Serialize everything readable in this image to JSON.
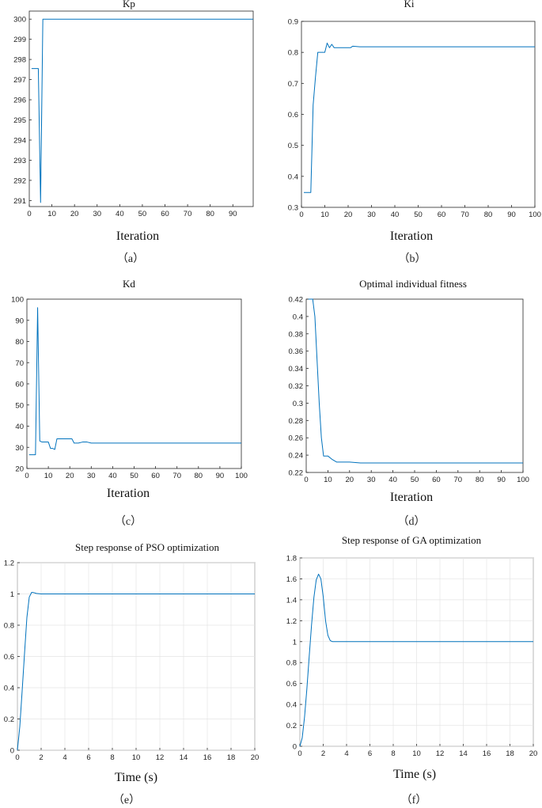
{
  "line_color": "#0072BD",
  "chart_data": [
    {
      "id": "a",
      "type": "line",
      "title": "Kp",
      "xlabel": "Iteration",
      "caption": "（a）",
      "xlim": [
        0,
        99
      ],
      "ylim": [
        290.7,
        300.4
      ],
      "xticks": [
        0,
        10,
        20,
        30,
        40,
        50,
        60,
        70,
        80,
        90
      ],
      "yticks": [
        291,
        292,
        293,
        294,
        295,
        296,
        297,
        298,
        299,
        300
      ],
      "grid": false,
      "series": [
        {
          "x": [
            1,
            4,
            5,
            6,
            99
          ],
          "y": [
            297.55,
            297.55,
            290.9,
            300.0,
            300.0
          ]
        }
      ]
    },
    {
      "id": "b",
      "type": "line",
      "title": "Ki",
      "xlabel": "Iteration",
      "caption": "（b）",
      "xlim": [
        0,
        100
      ],
      "ylim": [
        0.3,
        0.9
      ],
      "xticks": [
        0,
        10,
        20,
        30,
        40,
        50,
        60,
        70,
        80,
        90,
        100
      ],
      "yticks": [
        0.3,
        0.4,
        0.5,
        0.6,
        0.7,
        0.8,
        0.9
      ],
      "grid": false,
      "series": [
        {
          "x": [
            1,
            4,
            5,
            6,
            7,
            8,
            10,
            11,
            12,
            13,
            14,
            16,
            18,
            21,
            22,
            25,
            100
          ],
          "y": [
            0.348,
            0.348,
            0.63,
            0.72,
            0.8,
            0.8,
            0.8,
            0.83,
            0.815,
            0.826,
            0.815,
            0.815,
            0.815,
            0.815,
            0.82,
            0.818,
            0.818
          ]
        }
      ]
    },
    {
      "id": "c",
      "type": "line",
      "title": "Kd",
      "xlabel": "Iteration",
      "caption": "（c）",
      "xlim": [
        0,
        100
      ],
      "ylim": [
        20,
        100
      ],
      "xticks": [
        0,
        10,
        20,
        30,
        40,
        50,
        60,
        70,
        80,
        90,
        100
      ],
      "yticks": [
        20,
        30,
        40,
        50,
        60,
        70,
        80,
        90,
        100
      ],
      "grid": false,
      "series": [
        {
          "x": [
            1,
            4,
            5,
            6,
            7,
            9,
            10,
            11,
            12,
            13,
            14,
            20,
            21,
            22,
            24,
            26,
            28,
            30,
            100
          ],
          "y": [
            26.5,
            26.5,
            96,
            33,
            32.5,
            32.5,
            32.5,
            29.5,
            29.5,
            29,
            34,
            34,
            34,
            32,
            32,
            32.5,
            32.5,
            32,
            32
          ]
        }
      ]
    },
    {
      "id": "d",
      "type": "line",
      "title": "Optimal individual fitness",
      "xlabel": "Iteration",
      "caption": "（d）",
      "xlim": [
        0,
        100
      ],
      "ylim": [
        0.22,
        0.42
      ],
      "xticks": [
        0,
        10,
        20,
        30,
        40,
        50,
        60,
        70,
        80,
        90,
        100
      ],
      "yticks": [
        0.22,
        0.24,
        0.26,
        0.28,
        0.3,
        0.32,
        0.34,
        0.36,
        0.38,
        0.4,
        0.42
      ],
      "grid": false,
      "series": [
        {
          "x": [
            1,
            3,
            4,
            5,
            6,
            7,
            8,
            10,
            12,
            14,
            16,
            20,
            25,
            30,
            100
          ],
          "y": [
            0.42,
            0.42,
            0.4,
            0.35,
            0.3,
            0.26,
            0.239,
            0.239,
            0.235,
            0.232,
            0.232,
            0.232,
            0.231,
            0.231,
            0.231
          ]
        }
      ]
    },
    {
      "id": "e",
      "type": "line",
      "title": "Step response of PSO optimization",
      "xlabel": "Time (s)",
      "caption": "（e）",
      "xlim": [
        0,
        20
      ],
      "ylim": [
        0,
        1.2
      ],
      "xticks": [
        0,
        2,
        4,
        6,
        8,
        10,
        12,
        14,
        16,
        18,
        20
      ],
      "yticks": [
        0,
        0.2,
        0.4,
        0.6,
        0.8,
        1,
        1.2
      ],
      "grid": true,
      "series": [
        {
          "x": [
            0,
            0.2,
            0.4,
            0.6,
            0.8,
            1.0,
            1.2,
            1.4,
            1.6,
            2.0,
            3.0,
            20
          ],
          "y": [
            0,
            0.15,
            0.38,
            0.62,
            0.85,
            0.98,
            1.01,
            1.008,
            1.003,
            1.0,
            1.0,
            1.0
          ]
        }
      ]
    },
    {
      "id": "f",
      "type": "line",
      "title": "Step response of GA optimization",
      "xlabel": "Time (s)",
      "caption": "（f）",
      "xlim": [
        0,
        20
      ],
      "ylim": [
        0,
        1.8
      ],
      "xticks": [
        0,
        2,
        4,
        6,
        8,
        10,
        12,
        14,
        16,
        18,
        20
      ],
      "yticks": [
        0,
        0.2,
        0.4,
        0.6,
        0.8,
        1,
        1.2,
        1.4,
        1.6,
        1.8
      ],
      "grid": true,
      "series": [
        {
          "x": [
            0,
            0.2,
            0.4,
            0.6,
            0.8,
            1.0,
            1.2,
            1.4,
            1.6,
            1.8,
            2.0,
            2.2,
            2.4,
            2.6,
            2.8,
            3.0,
            3.5,
            4.0,
            20
          ],
          "y": [
            0,
            0.08,
            0.28,
            0.55,
            0.86,
            1.16,
            1.42,
            1.59,
            1.645,
            1.6,
            1.43,
            1.2,
            1.06,
            1.01,
            1.0,
            1.0,
            1.0,
            1.0,
            1.0
          ]
        }
      ]
    }
  ]
}
